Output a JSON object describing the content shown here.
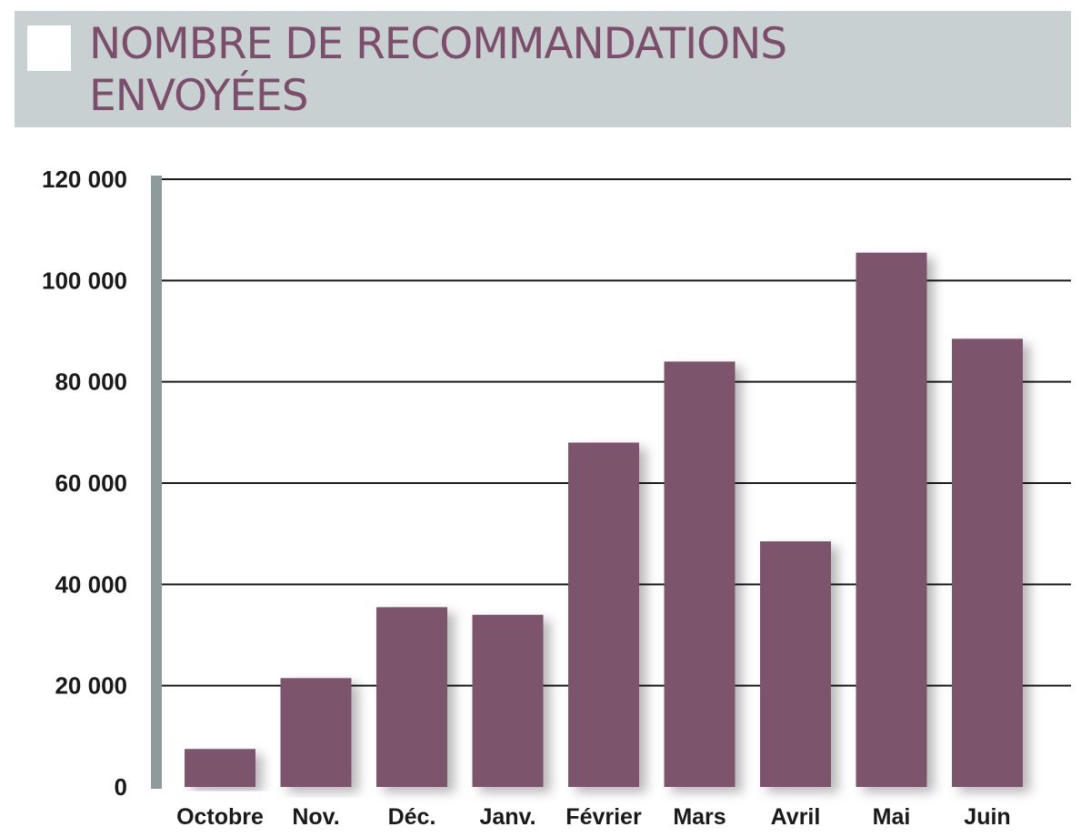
{
  "colors": {
    "header_background": "#c9d0d2",
    "title": "#7b4e6b",
    "bar": "#7b546c",
    "gridline": "#1a1a1a",
    "y_axis_bar": "#8e9a9b"
  },
  "chart_data": {
    "type": "bar",
    "title": "NOMBRE DE RECOMMANDATIONS\nENVOYÉES",
    "categories": [
      "Octobre",
      "Nov.",
      "Déc.",
      "Janv.",
      "Février",
      "Mars",
      "Avril",
      "Mai",
      "Juin"
    ],
    "values": [
      7500,
      21500,
      35500,
      34000,
      68000,
      84000,
      48500,
      105500,
      88500
    ],
    "ylim": [
      0,
      120000
    ],
    "yticks": [
      0,
      20000,
      40000,
      60000,
      80000,
      100000,
      120000
    ],
    "ytick_labels": [
      "0",
      "20 000",
      "40 000",
      "60 000",
      "80 000",
      "100 000",
      "120 000"
    ],
    "xlabel": "",
    "ylabel": "",
    "grid": true,
    "legend": "none"
  }
}
